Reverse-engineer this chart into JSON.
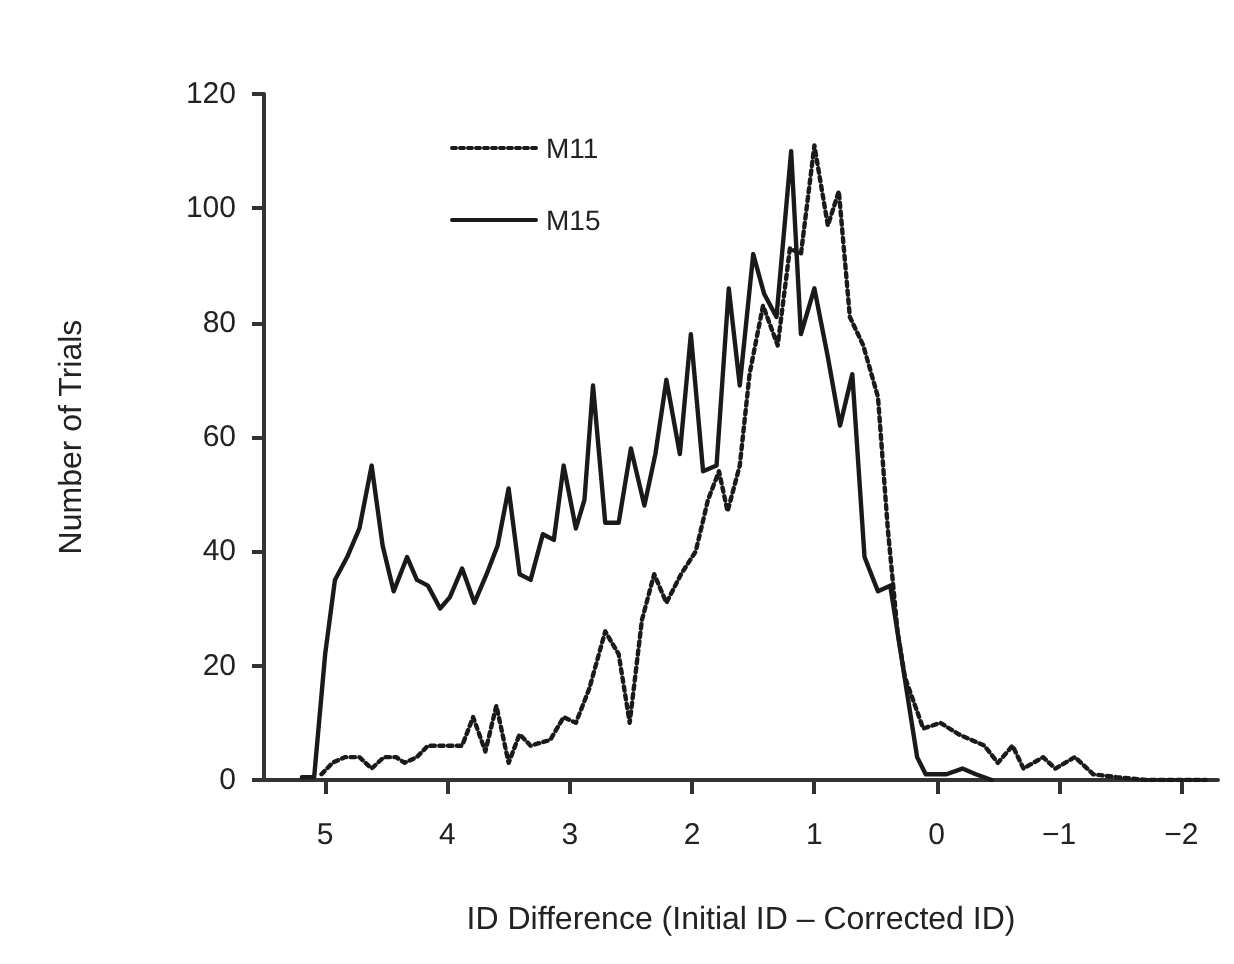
{
  "chart_data": {
    "type": "line",
    "xlabel": "ID Difference (Initial ID – Corrected ID)",
    "ylabel": "Number of Trials",
    "xlim": [
      5.5,
      -2.3
    ],
    "xticks": [
      5,
      4,
      3,
      2,
      1,
      0,
      {
        "value": -1,
        "label": "−1"
      },
      {
        "value": -2,
        "label": "−2"
      }
    ],
    "ylim": [
      0,
      120
    ],
    "yticks": [
      0,
      20,
      40,
      60,
      80,
      100,
      120
    ],
    "grid": false,
    "legend": "top",
    "marker": "none",
    "series": [
      {
        "name": "M11",
        "color": "#1a1a1a",
        "line_style": "dotted",
        "x": [
          5.03,
          4.94,
          4.84,
          4.72,
          4.62,
          4.52,
          4.42,
          4.35,
          4.25,
          4.16,
          4.05,
          3.88,
          3.79,
          3.69,
          3.6,
          3.5,
          3.41,
          3.32,
          3.16,
          3.05,
          2.95,
          2.84,
          2.71,
          2.6,
          2.51,
          2.41,
          2.31,
          2.21,
          2.09,
          1.97,
          1.87,
          1.78,
          1.71,
          1.61,
          1.53,
          1.42,
          1.3,
          1.2,
          1.11,
          1.0,
          0.89,
          0.8,
          0.71,
          0.6,
          0.48,
          0.4,
          0.32,
          0.26,
          0.11,
          -0.03,
          -0.18,
          -0.39,
          -0.5,
          -0.62,
          -0.71,
          -0.87,
          -0.97,
          -1.13,
          -1.28,
          -1.47,
          -1.72,
          -2.2
        ],
        "values": [
          1,
          3,
          4,
          4,
          2,
          4,
          4,
          3,
          4,
          6,
          6,
          6,
          11,
          5,
          13,
          3,
          8,
          6,
          7,
          11,
          10,
          16,
          26,
          22,
          10,
          28,
          36,
          31,
          36,
          40,
          49,
          54,
          47,
          55,
          71,
          83,
          76,
          93,
          92,
          111,
          97,
          103,
          81,
          76,
          67,
          44,
          26,
          18,
          9,
          10,
          8,
          6,
          3,
          6,
          2,
          4,
          2,
          4,
          1,
          0.5,
          0,
          0
        ]
      },
      {
        "name": "M15",
        "color": "#1a1a1a",
        "line_style": "solid",
        "x": [
          5.19,
          5.09,
          5.0,
          4.92,
          4.82,
          4.72,
          4.62,
          4.53,
          4.44,
          4.33,
          4.25,
          4.16,
          4.06,
          3.98,
          3.88,
          3.78,
          3.68,
          3.59,
          3.5,
          3.41,
          3.32,
          3.22,
          3.13,
          3.05,
          2.95,
          2.88,
          2.81,
          2.71,
          2.6,
          2.5,
          2.39,
          2.3,
          2.21,
          2.1,
          2.01,
          1.91,
          1.8,
          1.7,
          1.61,
          1.5,
          1.41,
          1.31,
          1.19,
          1.11,
          1.0,
          0.89,
          0.79,
          0.69,
          0.59,
          0.48,
          0.38,
          0.16,
          0.09,
          -0.08,
          -0.21,
          -0.32,
          -0.45
        ],
        "values": [
          0.5,
          0.5,
          22,
          35,
          39,
          44,
          55,
          41,
          33,
          39,
          35,
          34,
          30,
          32,
          37,
          31,
          36,
          41,
          51,
          36,
          35,
          43,
          42,
          55,
          44,
          49,
          69,
          45,
          45,
          58,
          48,
          57,
          70,
          57,
          78,
          54,
          55,
          86,
          69,
          92,
          85,
          81,
          110,
          78,
          86,
          74,
          62,
          71,
          39,
          33,
          34,
          4,
          1,
          1,
          2,
          1,
          0
        ]
      }
    ]
  }
}
